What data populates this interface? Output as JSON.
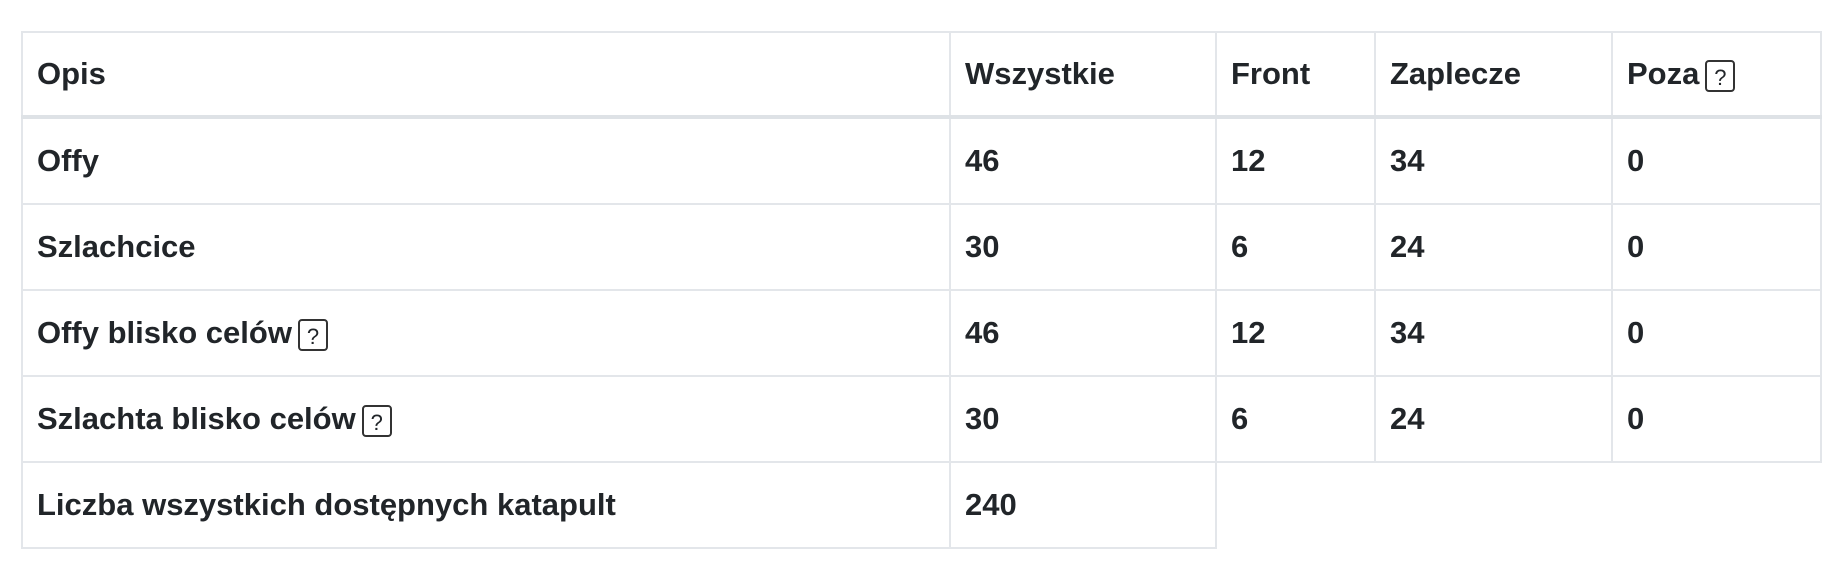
{
  "table": {
    "headers": [
      "Opis",
      "Wszystkie",
      "Front",
      "Zaplecze",
      "Poza"
    ],
    "help_glyph": "?",
    "rows": [
      {
        "label": "Offy",
        "cells": [
          "46",
          "12",
          "34",
          "0"
        ],
        "help": false
      },
      {
        "label": "Szlachcice",
        "cells": [
          "30",
          "6",
          "24",
          "0"
        ],
        "help": false
      },
      {
        "label": "Offy blisko celów",
        "cells": [
          "46",
          "12",
          "34",
          "0"
        ],
        "help": true
      },
      {
        "label": "Szlachta blisko celów",
        "cells": [
          "30",
          "6",
          "24",
          "0"
        ],
        "help": true
      }
    ],
    "total": {
      "label": "Liczba wszystkich dostępnych katapult",
      "value": "240"
    }
  },
  "colors": {
    "border": "#dee2e6",
    "text": "#212529"
  }
}
